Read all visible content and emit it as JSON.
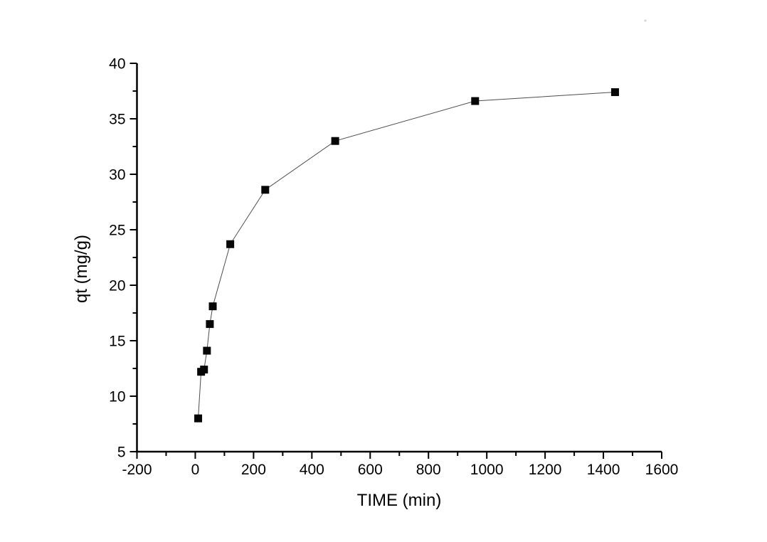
{
  "figure": {
    "background_color": "#ffffff",
    "axis_color": "#000000",
    "text_color": "#000000"
  },
  "chart_data": {
    "type": "scatter",
    "title": "",
    "xlabel": "TIME (min)",
    "ylabel": "qt (mg/g)",
    "x": [
      10,
      20,
      30,
      40,
      50,
      60,
      120,
      240,
      480,
      960,
      1440
    ],
    "y": [
      8.0,
      12.2,
      12.4,
      14.1,
      16.5,
      18.1,
      23.7,
      28.6,
      33.0,
      36.6,
      37.4
    ],
    "xlim": [
      -200,
      1600
    ],
    "ylim": [
      5,
      40
    ],
    "x_major_ticks": [
      -200,
      0,
      200,
      400,
      600,
      800,
      1000,
      1200,
      1400,
      1600
    ],
    "x_minor_step": 100,
    "y_major_ticks": [
      5,
      10,
      15,
      20,
      25,
      30,
      35,
      40
    ],
    "y_minor_step": 2.5,
    "grid": false,
    "legend": "none",
    "marker": {
      "shape": "square",
      "size": 11,
      "color": "#060606"
    },
    "line": {
      "color": "#4d4d4d",
      "width": 1
    }
  },
  "artifact": {
    "description": "faint speck near top-right corner",
    "color": "#d6d6d6"
  }
}
